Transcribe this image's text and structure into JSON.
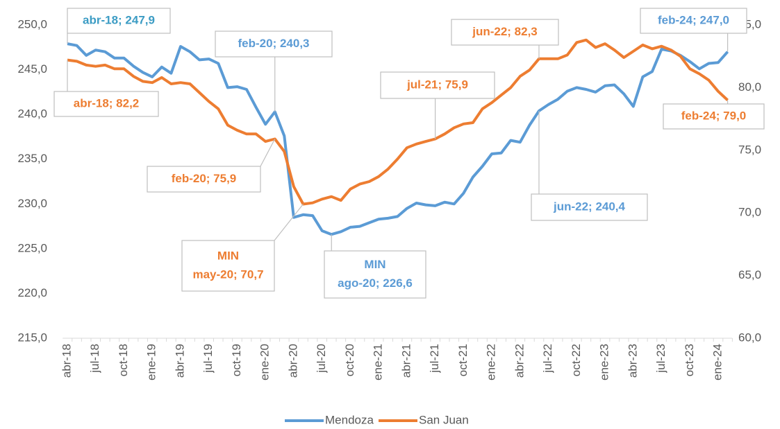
{
  "chart_data": {
    "type": "line",
    "categories": [
      "abr-18",
      null,
      null,
      "jul-18",
      null,
      null,
      "oct-18",
      null,
      null,
      "ene-19",
      null,
      null,
      "abr-19",
      null,
      null,
      "jul-19",
      null,
      null,
      "oct-19",
      null,
      null,
      "ene-20",
      null,
      null,
      "abr-20",
      null,
      null,
      "jul-20",
      null,
      null,
      "oct-20",
      null,
      null,
      "ene-21",
      null,
      null,
      "abr-21",
      null,
      null,
      "jul-21",
      null,
      null,
      "oct-21",
      null,
      null,
      "ene-22",
      null,
      null,
      "abr-22",
      null,
      null,
      "jul-22",
      null,
      null,
      "oct-22",
      null,
      null,
      "ene-23",
      null,
      null,
      "abr-23",
      null,
      null,
      "jul-23",
      null,
      null,
      "oct-23",
      null,
      null,
      "ene-24",
      null
    ],
    "series": [
      {
        "name": "Mendoza",
        "color": "#5b9bd5",
        "axis": "y",
        "values": [
          247.9,
          247.7,
          246.6,
          247.2,
          247.0,
          246.3,
          246.3,
          245.4,
          244.7,
          244.2,
          245.3,
          244.6,
          247.6,
          247.0,
          246.1,
          246.2,
          245.7,
          243.0,
          243.1,
          242.8,
          240.8,
          238.9,
          240.3,
          237.6,
          228.5,
          228.8,
          228.7,
          227.0,
          226.6,
          226.9,
          227.4,
          227.5,
          227.9,
          228.3,
          228.4,
          228.6,
          229.5,
          230.1,
          229.9,
          229.8,
          230.2,
          230.0,
          231.2,
          233.0,
          234.2,
          235.6,
          235.7,
          237.1,
          236.9,
          238.8,
          240.4,
          241.1,
          241.7,
          242.6,
          243.0,
          242.8,
          242.5,
          243.2,
          243.3,
          242.3,
          240.9,
          244.2,
          244.8,
          247.3,
          247.1,
          246.6,
          245.9,
          245.1,
          245.7,
          245.8,
          247.0
        ]
      },
      {
        "name": "San Juan",
        "color": "#ed7d31",
        "axis": "y2",
        "values": [
          82.2,
          82.1,
          81.8,
          81.7,
          81.8,
          81.5,
          81.5,
          80.9,
          80.5,
          80.4,
          80.8,
          80.3,
          80.4,
          80.3,
          79.6,
          78.9,
          78.3,
          77.0,
          76.6,
          76.3,
          76.3,
          75.7,
          75.9,
          74.9,
          72.1,
          70.7,
          70.8,
          71.1,
          71.3,
          71.0,
          71.9,
          72.3,
          72.5,
          72.9,
          73.5,
          74.3,
          75.2,
          75.5,
          75.7,
          75.9,
          76.3,
          76.8,
          77.1,
          77.2,
          78.3,
          78.8,
          79.4,
          80.0,
          80.9,
          81.4,
          82.3,
          82.3,
          82.3,
          82.6,
          83.6,
          83.8,
          83.2,
          83.5,
          83.0,
          82.4,
          82.9,
          83.4,
          83.1,
          83.3,
          83.0,
          82.5,
          81.5,
          81.1,
          80.6,
          79.7,
          79.0
        ]
      }
    ],
    "ylim": [
      215,
      250
    ],
    "yticks": [
      {
        "value": 215,
        "label": "215,0"
      },
      {
        "value": 220,
        "label": "220,0"
      },
      {
        "value": 225,
        "label": "225,0"
      },
      {
        "value": 230,
        "label": "230,0"
      },
      {
        "value": 235,
        "label": "235,0"
      },
      {
        "value": 240,
        "label": "240,0"
      },
      {
        "value": 245,
        "label": "245,0"
      },
      {
        "value": 250,
        "label": "250,0"
      }
    ],
    "y2lim": [
      60,
      85
    ],
    "y2ticks": [
      {
        "value": 60,
        "label": "60,0"
      },
      {
        "value": 65,
        "label": "65,0"
      },
      {
        "value": 70,
        "label": "70,0"
      },
      {
        "value": 75,
        "label": "75,0"
      },
      {
        "value": 80,
        "label": "80,0"
      },
      {
        "value": 85,
        "label": "85,0"
      }
    ],
    "legend": "bottom",
    "annotations": [
      {
        "text": [
          "abr-18; 247,9"
        ]
      },
      {
        "text": [
          "abr-18; 82,2"
        ]
      },
      {
        "text": [
          "feb-20; 240,3"
        ]
      },
      {
        "text": [
          "feb-20; 75,9"
        ]
      },
      {
        "text": [
          "MIN",
          "may-20; 70,7"
        ]
      },
      {
        "text": [
          "MIN",
          "ago-20; 226,6"
        ]
      },
      {
        "text": [
          "jul-21; 75,9"
        ]
      },
      {
        "text": [
          "jun-22; 82,3"
        ]
      },
      {
        "text": [
          "jun-22; 240,4"
        ]
      },
      {
        "text": [
          "feb-24; 247,0"
        ]
      },
      {
        "text": [
          "feb-24; 79,0"
        ]
      }
    ]
  }
}
